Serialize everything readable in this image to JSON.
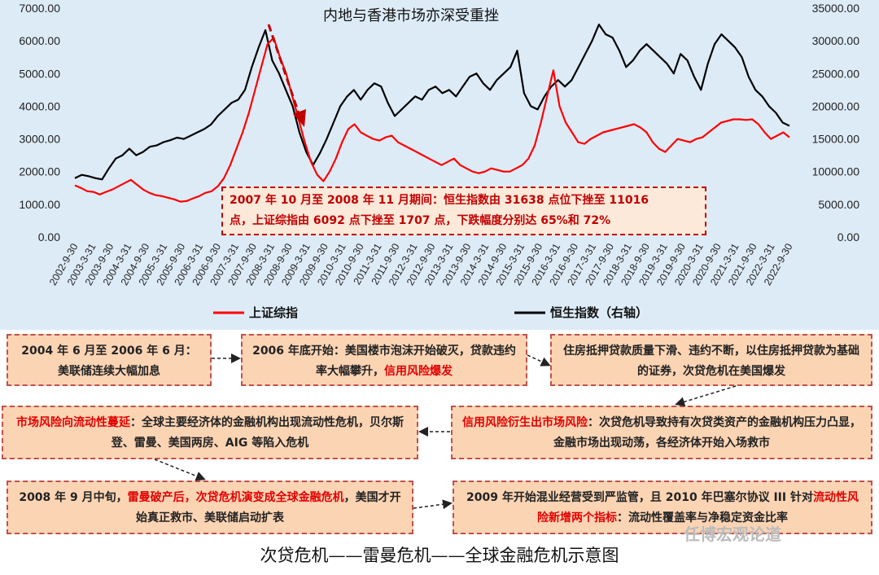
{
  "chart_data": {
    "type": "line",
    "title": "内地与香港市场亦深受重挫",
    "y_left": {
      "ylim": [
        0,
        7000
      ],
      "ticks": [
        "0.00",
        "1000.00",
        "2000.00",
        "3000.00",
        "4000.00",
        "5000.00",
        "6000.00",
        "7000.00"
      ]
    },
    "y_right": {
      "ylim": [
        0,
        35000
      ],
      "ticks": [
        "0.00",
        "5000.00",
        "10000.00",
        "15000.00",
        "20000.00",
        "25000.00",
        "30000.00",
        "35000.00"
      ]
    },
    "x_ticks": [
      "2002-9-30",
      "2003-3-31",
      "2003-9-30",
      "2004-3-31",
      "2004-9-30",
      "2005-3-31",
      "2005-9-30",
      "2006-3-31",
      "2006-9-30",
      "2007-3-31",
      "2007-9-30",
      "2008-3-31",
      "2008-9-30",
      "2009-3-31",
      "2009-9-30",
      "2010-3-31",
      "2010-9-30",
      "2011-3-31",
      "2011-9-30",
      "2012-3-31",
      "2012-9-30",
      "2013-3-31",
      "2013-9-30",
      "2014-3-31",
      "2014-9-30",
      "2015-3-31",
      "2015-9-30",
      "2016-3-31",
      "2016-9-30",
      "2017-3-31",
      "2017-9-30",
      "2018-3-31",
      "2018-9-30",
      "2019-3-31",
      "2019-9-30",
      "2020-3-31",
      "2020-9-30",
      "2021-3-31",
      "2021-9-30",
      "2022-3-31",
      "2022-9-30"
    ],
    "series": [
      {
        "name": "上证综指",
        "color": "#ff0000",
        "axis": "left",
        "values": [
          1580,
          1500,
          1400,
          1380,
          1300,
          1380,
          1450,
          1550,
          1650,
          1750,
          1600,
          1450,
          1350,
          1280,
          1250,
          1200,
          1150,
          1080,
          1100,
          1180,
          1250,
          1350,
          1400,
          1550,
          1800,
          2200,
          2700,
          3200,
          3800,
          4500,
          5200,
          5900,
          6092,
          5500,
          5000,
          4300,
          3600,
          2900,
          2300,
          1900,
          1707,
          2000,
          2400,
          2900,
          3300,
          3450,
          3200,
          3100,
          3000,
          2950,
          3050,
          3100,
          2900,
          2800,
          2700,
          2600,
          2500,
          2400,
          2300,
          2200,
          2300,
          2400,
          2200,
          2100,
          2000,
          1950,
          2000,
          2100,
          2050,
          2000,
          2000,
          2100,
          2200,
          2400,
          2800,
          3500,
          4300,
          5100,
          4000,
          3500,
          3200,
          2900,
          2850,
          3000,
          3100,
          3200,
          3250,
          3300,
          3350,
          3400,
          3450,
          3350,
          3200,
          2900,
          2700,
          2600,
          2800,
          3000,
          2950,
          2900,
          3000,
          3050,
          3200,
          3350,
          3500,
          3550,
          3600,
          3600,
          3580,
          3600,
          3450,
          3200,
          3000,
          3100,
          3200,
          3050
        ]
      },
      {
        "name": "恒生指数（右轴）",
        "color": "#000000",
        "axis": "right",
        "values": [
          9000,
          9500,
          9300,
          9000,
          8800,
          10500,
          12000,
          12500,
          13500,
          12500,
          13000,
          13800,
          14000,
          14500,
          14800,
          15200,
          15000,
          15500,
          16000,
          16500,
          17200,
          18500,
          19500,
          20500,
          21000,
          22500,
          26000,
          29000,
          31638,
          27000,
          25000,
          22500,
          20000,
          16000,
          13000,
          11016,
          12800,
          15000,
          17500,
          20000,
          21500,
          22500,
          21000,
          22500,
          23500,
          23000,
          20500,
          18500,
          19500,
          20500,
          21500,
          21000,
          22500,
          23000,
          22000,
          22500,
          21500,
          23000,
          24500,
          25000,
          23500,
          22500,
          24000,
          25000,
          26000,
          28500,
          22000,
          20000,
          19500,
          21500,
          23000,
          24000,
          23000,
          24000,
          26000,
          28000,
          30000,
          32500,
          31000,
          30500,
          28500,
          26000,
          27000,
          28500,
          29500,
          28500,
          27500,
          26500,
          25000,
          28000,
          27000,
          24500,
          22500,
          26500,
          29500,
          31000,
          30000,
          29000,
          27500,
          24500,
          22500,
          21500,
          20000,
          19000,
          17500,
          17000
        ]
      }
    ]
  },
  "callout": {
    "line1": "2007 年 10 月至 2008 年 11 月期间：恒生指数由 31638 点位下挫至 11016",
    "line2": "点，上证综指由 6092 点下挫至 1707 点，下跌幅度分别达 65%和 72%"
  },
  "legend": {
    "shanghai": "上证综指",
    "hangseng": "恒生指数（右轴）"
  },
  "boxes": {
    "b1": {
      "text": "2004 年 6 月至 2006 年 6 月：美联储连续大幅加息"
    },
    "b2": {
      "text_a": "2006 年底开始：美国楼市泡沫开始破灭，贷款违约率大幅攀升，",
      "text_red": "信用风险爆发"
    },
    "b3": {
      "text": "住房抵押贷款质量下滑、违约不断，以住房抵押贷款为基础的证券，次贷危机在美国爆发"
    },
    "b4": {
      "text_red": "信用风险衍生出市场风险",
      "text_b": "：次贷危机导致持有次贷类资产的金融机构压力凸显，金融市场出现动荡，各经济体开始入场救市"
    },
    "b5": {
      "text_red": "市场风险向流动性蔓延",
      "text_b": "：全球主要经济体的金融机构出现流动性危机，贝尔斯登、雷曼、美国两房、AIG 等陷入危机"
    },
    "b6": {
      "text_a": "2008 年 9 月中旬，",
      "text_red": "雷曼破产后，次贷危机演变成全球金融危机",
      "text_b": "，美国才开始真正救市、美联储启动扩表"
    },
    "b7": {
      "text_a": "2009 年开始混业经营受到严监管，且 2010 年巴塞尔协议 III 针对",
      "text_red": "流动性风险新增两个指标",
      "text_b": "：流动性覆盖率与净稳定资金比率"
    }
  },
  "caption": "次贷危机——雷曼危机——全球金融危机示意图",
  "watermark": "任博宏观论道"
}
